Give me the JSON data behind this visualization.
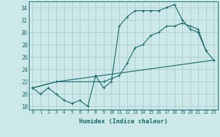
{
  "xlabel": "Humidex (Indice chaleur)",
  "bg_color": "#cce8e8",
  "grid_color": "#aacccc",
  "line_color": "#1a6b6b",
  "xlim": [
    -0.5,
    23.5
  ],
  "ylim": [
    17.5,
    35.0
  ],
  "yticks": [
    18,
    20,
    22,
    24,
    26,
    28,
    30,
    32,
    34
  ],
  "xticks": [
    0,
    1,
    2,
    3,
    4,
    5,
    6,
    7,
    8,
    9,
    10,
    11,
    12,
    13,
    14,
    15,
    16,
    17,
    18,
    19,
    20,
    21,
    22,
    23
  ],
  "line1_x": [
    0,
    1,
    2,
    3,
    4,
    5,
    6,
    7,
    8,
    9,
    10,
    11,
    12,
    13,
    14,
    15,
    16,
    17,
    18,
    19,
    20,
    21,
    22
  ],
  "line1_y": [
    21.0,
    20.0,
    21.0,
    20.0,
    19.0,
    18.5,
    19.0,
    18.0,
    23.0,
    21.0,
    22.0,
    31.0,
    32.5,
    33.5,
    33.5,
    33.5,
    33.5,
    34.0,
    34.5,
    32.0,
    30.5,
    30.0,
    27.0
  ],
  "line2_x": [
    0,
    3,
    9,
    10,
    11,
    12,
    13,
    14,
    15,
    16,
    17,
    18,
    19,
    20,
    21,
    22,
    23
  ],
  "line2_y": [
    21.0,
    22.0,
    22.0,
    22.5,
    23.0,
    25.0,
    27.5,
    28.0,
    29.5,
    30.0,
    31.0,
    31.0,
    31.5,
    31.0,
    30.5,
    27.0,
    25.5
  ],
  "line3_x": [
    0,
    3,
    23
  ],
  "line3_y": [
    21.0,
    22.0,
    25.5
  ]
}
